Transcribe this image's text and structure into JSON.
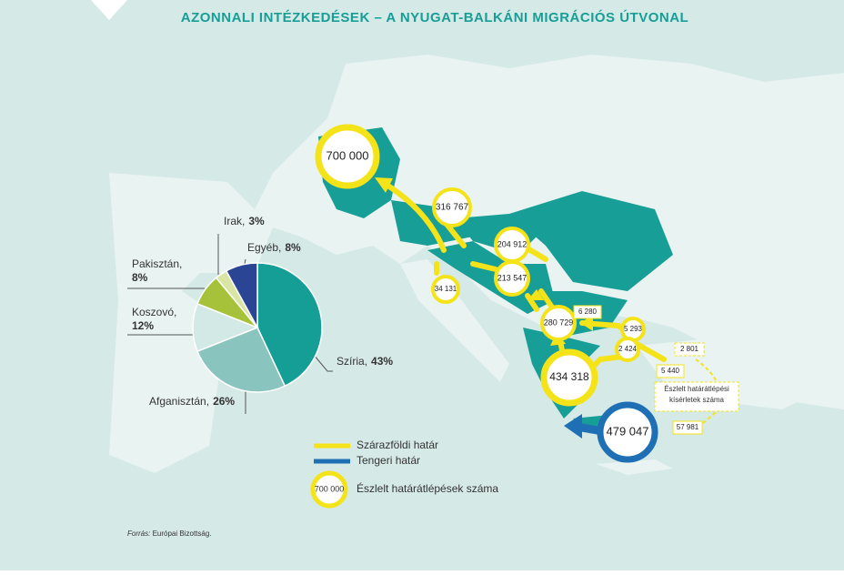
{
  "title": "AZONNALI INTÉZKEDÉSEK – A NYUGAT-BALKÁNI MIGRÁCIÓS ÚTVONAL",
  "chart_data": {
    "type": "pie",
    "categories": [
      "Szíria",
      "Afganisztán",
      "Koszovó",
      "Pakisztán",
      "Irak",
      "Egyéb"
    ],
    "values": [
      43,
      26,
      12,
      8,
      3,
      8
    ],
    "value_labels": [
      "43%",
      "26%",
      "12%",
      "8%",
      "3%",
      "8%"
    ],
    "colors": [
      "#149e96",
      "#8ac4be",
      "#d3e9e5",
      "#a6c23a",
      "#d9e5a2",
      "#2b4595"
    ]
  },
  "map": {
    "markers": [
      {
        "label": "700 000"
      },
      {
        "label": "316 767"
      },
      {
        "label": "204 912"
      },
      {
        "label": "213 547"
      },
      {
        "label": "34 131"
      },
      {
        "label": "280 729"
      },
      {
        "label": "6 280"
      },
      {
        "label": "5 293"
      },
      {
        "label": "2 424"
      },
      {
        "label": "2 801"
      },
      {
        "label": "5 440"
      },
      {
        "label": "434 318"
      },
      {
        "label": "479 047"
      },
      {
        "label": "57 981"
      }
    ],
    "callout": "Észlelt határátlépési kísérletek száma"
  },
  "legend": {
    "land": "Szárazföldi határ",
    "sea": "Tengeri határ",
    "count": "Észlelt határátlépések száma",
    "sample": "700 000"
  },
  "source": {
    "prefix": "Forrás:",
    "text": "Európai Bizottság."
  }
}
